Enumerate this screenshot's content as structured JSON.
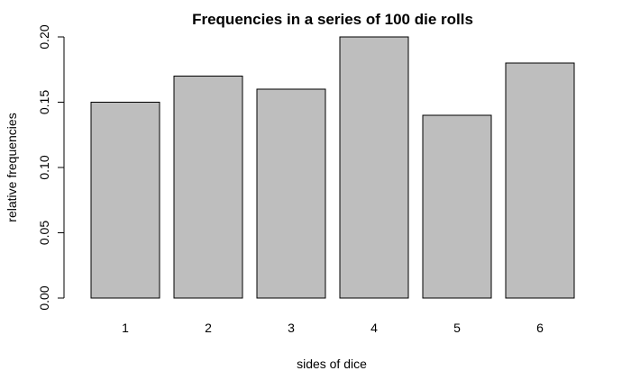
{
  "chart_data": {
    "type": "bar",
    "title": "Frequencies in a series of 100 die rolls",
    "xlabel": "sides of dice",
    "ylabel": "relative frequencies",
    "categories": [
      "1",
      "2",
      "3",
      "4",
      "5",
      "6"
    ],
    "values": [
      0.15,
      0.17,
      0.16,
      0.2,
      0.14,
      0.18
    ],
    "ylim": [
      0,
      0.2
    ],
    "yticks": [
      "0.00",
      "0.05",
      "0.10",
      "0.15",
      "0.20"
    ],
    "grid": false,
    "bar_color": "#bebebe",
    "edge_color": "#000000"
  }
}
